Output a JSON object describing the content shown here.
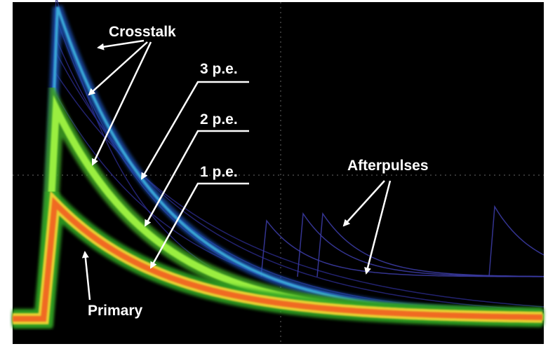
{
  "labels": {
    "crosstalk": "Crosstalk",
    "pe3": "3 p.e.",
    "pe2": "2 p.e.",
    "pe1": "1 p.e.",
    "afterpulses": "Afterpulses",
    "primary": "Primary"
  }
}
